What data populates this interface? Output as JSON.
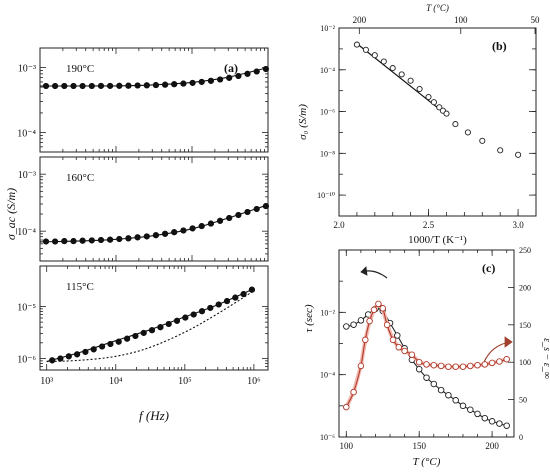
{
  "figure": {
    "panels": [
      "(a)",
      "(b)",
      "(c)"
    ]
  },
  "chart_data": [
    {
      "id": "a1",
      "type": "scatter",
      "panel_label": "(a)",
      "annotation": "190°C",
      "xscale": "log",
      "yscale": "log",
      "xlim": [
        1000,
        1000000
      ],
      "ylim": [
        5e-05,
        0.002
      ],
      "y_ticks": [
        "10⁻³",
        "10⁻⁴"
      ],
      "series": [
        {
          "style": "markers",
          "x": [
            1200,
            1580,
            2090,
            2760,
            3640,
            4800,
            6340,
            8370,
            11040,
            14580,
            19240,
            25400,
            33520,
            44250,
            58400,
            77100,
            101700,
            134300,
            177200,
            234000,
            308800,
            407600,
            538000,
            710000,
            937000
          ],
          "y": [
            0.00052,
            0.00052,
            0.00052,
            0.00052,
            0.00052,
            0.00052,
            0.000521,
            0.000522,
            0.000523,
            0.000525,
            0.000528,
            0.000532,
            0.000537,
            0.000544,
            0.000553,
            0.000565,
            0.00058,
            0.0006,
            0.000625,
            0.000655,
            0.000695,
            0.00074,
            0.0008,
            0.00087,
            0.00095
          ]
        },
        {
          "style": "line",
          "x": [
            1000,
            3000,
            10000,
            30000,
            100000,
            300000,
            1000000
          ],
          "y": [
            0.00052,
            0.00052,
            0.000522,
            0.00054,
            0.00059,
            0.00071,
            0.001
          ]
        }
      ]
    },
    {
      "id": "a2",
      "type": "scatter",
      "annotation": "160°C",
      "xscale": "log",
      "yscale": "log",
      "xlim": [
        1000,
        1000000
      ],
      "ylim": [
        3e-05,
        0.002
      ],
      "y_ticks": [
        "10⁻³",
        "10⁻⁴"
      ],
      "ylabel": "σ_ac (S/m)",
      "series": [
        {
          "style": "markers",
          "x": [
            1200,
            1580,
            2090,
            2760,
            3640,
            4800,
            6340,
            8370,
            11040,
            14580,
            19240,
            25400,
            33520,
            44250,
            58400,
            77100,
            101700,
            134300,
            177200,
            234000,
            308800,
            407600,
            538000,
            710000,
            937000
          ],
          "y": [
            6.6e-05,
            6.6e-05,
            6.7e-05,
            6.7e-05,
            6.8e-05,
            6.9e-05,
            7e-05,
            7.1e-05,
            7.3e-05,
            7.5e-05,
            7.8e-05,
            8.1e-05,
            8.5e-05,
            9e-05,
            9.6e-05,
            0.000103,
            0.000112,
            0.000123,
            0.000136,
            0.000152,
            0.00017,
            0.000192,
            0.000217,
            0.000245,
            0.000275
          ]
        },
        {
          "style": "line",
          "x": [
            1000,
            3000,
            10000,
            30000,
            100000,
            300000,
            1000000
          ],
          "y": [
            6.5e-05,
            6.7e-05,
            7.2e-05,
            8.3e-05,
            0.00011,
            0.00017,
            0.00029
          ]
        }
      ]
    },
    {
      "id": "a3",
      "type": "scatter",
      "annotation": "115°C",
      "xscale": "log",
      "yscale": "log",
      "xlim": [
        800,
        1600000
      ],
      "ylim": [
        6e-07,
        6e-05
      ],
      "x_ticks": [
        "10³",
        "10⁴",
        "10⁵",
        "10⁶"
      ],
      "y_ticks": [
        "10⁻⁵",
        "10⁻⁶"
      ],
      "xlabel": "f (Hz)",
      "series": [
        {
          "style": "markers",
          "x": [
            1200,
            1580,
            2090,
            2760,
            3640,
            4800,
            6340,
            8370,
            11040,
            14580,
            19240,
            25400,
            33520,
            44250,
            58400,
            77100,
            101700,
            134300,
            177200,
            234000,
            308800,
            407600,
            538000,
            710000,
            937000
          ],
          "y": [
            9.2e-07,
            1e-06,
            1.1e-06,
            1.2e-06,
            1.34e-06,
            1.5e-06,
            1.7e-06,
            1.9e-06,
            2.1e-06,
            2.4e-06,
            2.7e-06,
            3.1e-06,
            3.5e-06,
            4e-06,
            4.6e-06,
            5.3e-06,
            6.1e-06,
            7e-06,
            8.1e-06,
            9.4e-06,
            1.09e-05,
            1.27e-05,
            1.48e-05,
            1.73e-05,
            2.1e-05
          ]
        },
        {
          "style": "line",
          "x": [
            1000,
            3000,
            10000,
            30000,
            100000,
            300000,
            1000000
          ],
          "y": [
            8.8e-07,
            1.3e-06,
            2.2e-06,
            3.5e-06,
            6.3e-06,
            1.08e-05,
            2.2e-05
          ]
        },
        {
          "style": "dashed",
          "x": [
            1000,
            3000,
            10000,
            30000,
            100000,
            300000,
            1000000
          ],
          "y": [
            8.7e-07,
            9.2e-07,
            1.1e-06,
            1.6e-06,
            3.2e-06,
            7.3e-06,
            2e-05
          ]
        }
      ]
    },
    {
      "id": "b",
      "type": "scatter",
      "panel_label": "(b)",
      "xscale": "linear",
      "yscale": "log",
      "xlim": [
        2.0,
        3.1
      ],
      "ylim": [
        1e-11,
        0.01
      ],
      "x_ticks": [
        2.0,
        2.5,
        3.0
      ],
      "y_ticks": [
        "10⁻²",
        "10⁻⁴",
        "10⁻⁶",
        "10⁻⁸",
        "10⁻¹⁰"
      ],
      "top_ticks": [
        200,
        100,
        50
      ],
      "xlabel": "1000/T (K⁻¹)",
      "ylabel": "σ₀ (S/m)",
      "top_label": "T (°C)",
      "series": [
        {
          "style": "markers",
          "x": [
            2.1,
            2.15,
            2.2,
            2.25,
            2.3,
            2.35,
            2.4,
            2.45,
            2.5,
            2.53,
            2.56,
            2.58,
            2.6,
            2.65,
            2.72,
            2.8,
            2.9,
            3.0
          ],
          "y": [
            0.0016,
            0.0009,
            0.0005,
            0.00025,
            0.00012,
            6e-05,
            3e-05,
            1.2e-05,
            5e-06,
            2.8e-06,
            1.6e-06,
            1.1e-06,
            8e-07,
            2.5e-07,
            1e-07,
            4e-08,
            1.4e-08,
            8.5e-09
          ]
        },
        {
          "style": "line",
          "x": [
            2.1,
            2.6
          ],
          "y": [
            0.0018,
            7e-07
          ]
        }
      ]
    },
    {
      "id": "c",
      "type": "line",
      "panel_label": "(c)",
      "xscale": "linear",
      "yscale": "log",
      "xlim": [
        95,
        215
      ],
      "ylim": [
        1e-06,
        1
      ],
      "y2lim": [
        0,
        250
      ],
      "x_ticks": [
        100,
        150,
        200
      ],
      "y_ticks": [
        "10⁻²",
        "10⁻⁴",
        "10⁻⁶"
      ],
      "y2_ticks": [
        0,
        50,
        100,
        150,
        200,
        250
      ],
      "xlabel": "T (°C)",
      "ylabel": "τ (sec)",
      "y2label": "ε_s − ε_∞",
      "series": [
        {
          "axis": "left",
          "color": "#222222",
          "style": "markers+line",
          "x": [
            100,
            105,
            110,
            115,
            120,
            125,
            130,
            135,
            140,
            145,
            150,
            155,
            160,
            165,
            170,
            175,
            180,
            185,
            190,
            195,
            200,
            205,
            210
          ],
          "y": [
            0.0035,
            0.004,
            0.0055,
            0.0085,
            0.013,
            0.011,
            0.0045,
            0.0018,
            0.0007,
            0.0003,
            0.00015,
            8e-05,
            5e-05,
            3.2e-05,
            2.2e-05,
            1.5e-05,
            1e-05,
            7.5e-06,
            5.5e-06,
            4e-06,
            3.2e-06,
            2.7e-06,
            2.3e-06
          ]
        },
        {
          "axis": "right",
          "color": "#b0392b",
          "style": "markers+line",
          "x": [
            100,
            105,
            110,
            113,
            116,
            119,
            122,
            125,
            128,
            132,
            136,
            140,
            145,
            150,
            155,
            160,
            165,
            170,
            175,
            180,
            185,
            190,
            195,
            200,
            205,
            210
          ],
          "y": [
            40,
            60,
            95,
            130,
            155,
            170,
            178,
            172,
            150,
            130,
            120,
            115,
            110,
            100,
            97,
            96,
            95,
            94,
            94,
            94,
            95,
            96,
            97,
            99,
            101,
            104
          ]
        }
      ]
    }
  ]
}
